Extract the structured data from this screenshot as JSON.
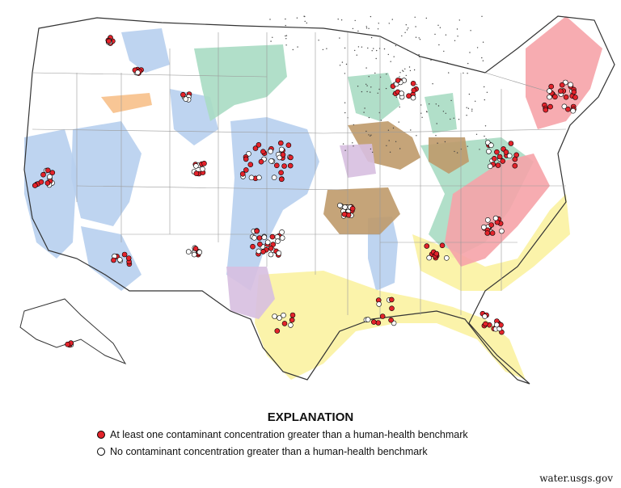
{
  "map": {
    "legend": {
      "title": "EXPLANATION",
      "items": [
        {
          "label": "At least one contaminant concentration greater than  a human-health benchmark",
          "fill": "#e3232b"
        },
        {
          "label": "No contaminant concentration greater than a human-health benchmark",
          "fill": "#ffffff"
        }
      ]
    },
    "credit": "water.usgs.gov",
    "colors": {
      "state_border": "#9a9a9a",
      "outline": "#333333",
      "aquifer_blue": "#b7cfee",
      "aquifer_green": "#a8dcc3",
      "aquifer_brown": "#bf9a6a",
      "aquifer_yellow": "#fbf2a1",
      "aquifer_pink": "#f6a3a8",
      "aquifer_purple": "#d7bfe0",
      "aquifer_orange": "#f7c08a",
      "glacial_stipple": "#444444",
      "exceed_marker": "#e3232b",
      "no_exceed_marker": "#ffffff"
    }
  }
}
